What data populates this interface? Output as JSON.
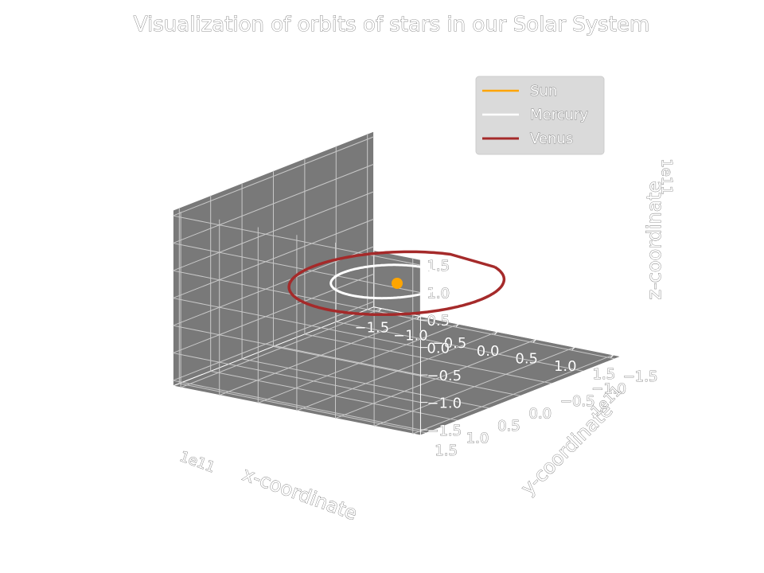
{
  "chart_data": {
    "type": "line3d",
    "title": "Visualization of orbits of stars in our Solar System",
    "xlabel": "x-coordinate",
    "ylabel": "y-coordinate",
    "zlabel": "z-coordinate",
    "x_offset_text": "1e11",
    "y_offset_text": "1e11",
    "z_offset_text": "1e11",
    "xlim": [
      -1.6,
      1.6
    ],
    "ylim": [
      -1.6,
      1.6
    ],
    "zlim": [
      -1.6,
      1.6
    ],
    "xticks": [
      "−1.5",
      "−1.0",
      "−0.5",
      "0.0",
      "0.5",
      "1.0",
      "1.5"
    ],
    "yticks": [
      "−1.5",
      "−1.0",
      "−0.5",
      "0.0",
      "0.5",
      "1.0",
      "1.5"
    ],
    "zticks": [
      "−1.5",
      "−1.0",
      "−0.5",
      "0.0",
      "0.5",
      "1.0",
      "1.5"
    ],
    "legend_position": "top-right",
    "grid": true,
    "series": [
      {
        "name": "Sun",
        "color": "#ffa500",
        "kind": "point",
        "x": [
          0.0
        ],
        "y": [
          0.0
        ],
        "z": [
          0.0
        ]
      },
      {
        "name": "Mercury",
        "color": "#ffffff",
        "kind": "orbit",
        "semi_major_axis": 0.58,
        "eccentricity": 0.2,
        "orbit_fraction": 0.92
      },
      {
        "name": "Venus",
        "color": "#a52a2a",
        "kind": "orbit",
        "semi_major_axis": 1.08,
        "eccentricity": 0.007,
        "orbit_fraction": 0.9
      }
    ]
  }
}
